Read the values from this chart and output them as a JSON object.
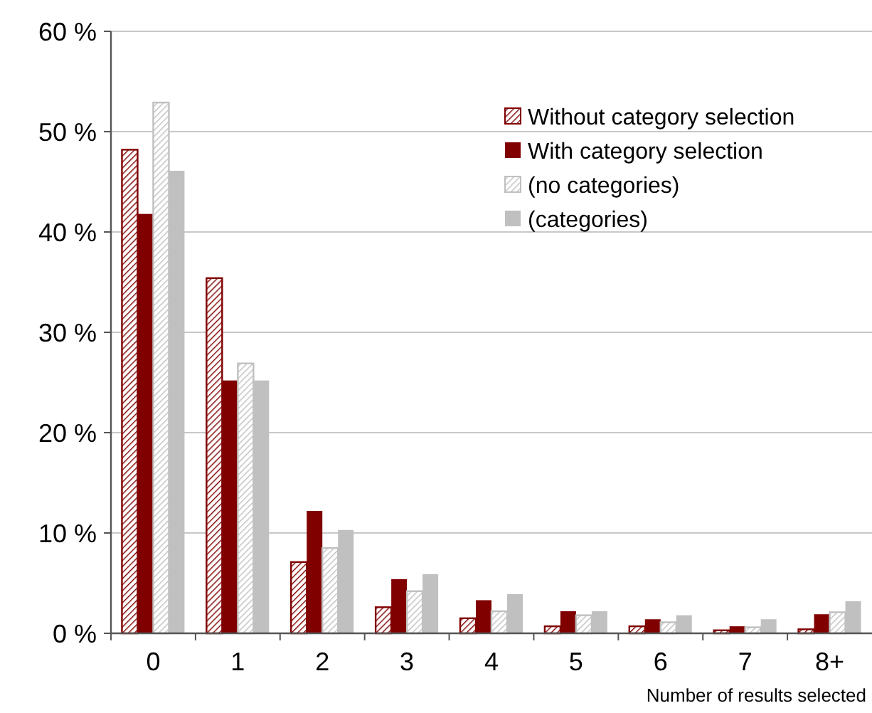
{
  "chart_data": {
    "type": "bar",
    "xlabel": "Number of results selected",
    "categories": [
      "0",
      "1",
      "2",
      "3",
      "4",
      "5",
      "6",
      "7",
      "8+"
    ],
    "series": [
      {
        "name": "Without category selection",
        "color": "#800000",
        "values": [
          48.2,
          35.4,
          7.1,
          2.6,
          1.5,
          0.7,
          0.7,
          0.3,
          0.4
        ]
      },
      {
        "name": "With category selection",
        "color": "#800000",
        "values": [
          41.8,
          25.2,
          12.2,
          5.4,
          3.3,
          2.2,
          1.4,
          0.7,
          1.9
        ]
      },
      {
        "name": "(no categories)",
        "color": "#c0c0c0",
        "values": [
          52.9,
          26.9,
          8.5,
          4.2,
          2.2,
          1.8,
          1.1,
          0.6,
          2.1
        ]
      },
      {
        "name": "(categories)",
        "color": "#c0c0c0",
        "values": [
          46.1,
          25.2,
          10.3,
          5.9,
          3.9,
          2.2,
          1.8,
          1.4,
          3.2
        ]
      }
    ],
    "ylim": [
      0,
      60
    ],
    "yticks": [
      {
        "value": 0,
        "label": "0 %"
      },
      {
        "value": 10,
        "label": "10 %"
      },
      {
        "value": 20,
        "label": "20 %"
      },
      {
        "value": 30,
        "label": "30 %"
      },
      {
        "value": 40,
        "label": "40 %"
      },
      {
        "value": 50,
        "label": "50 %"
      },
      {
        "value": 60,
        "label": "60 %"
      }
    ],
    "grid": "y",
    "legend": "top right"
  }
}
